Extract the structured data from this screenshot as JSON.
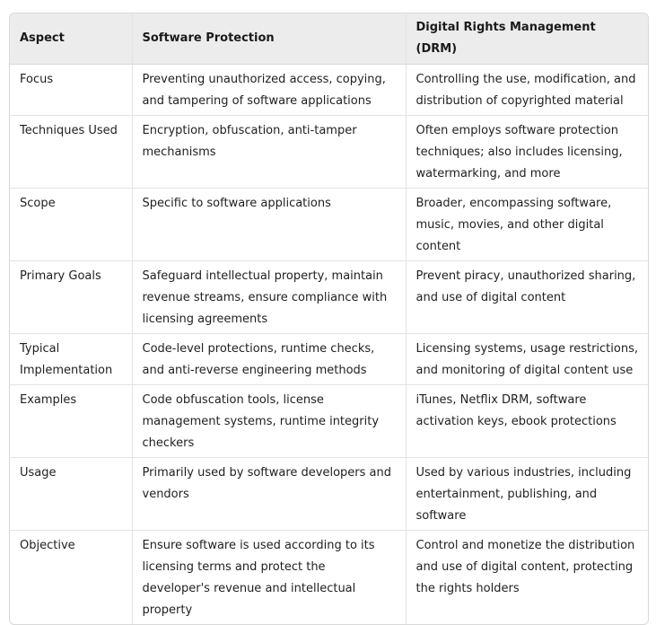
{
  "table": {
    "headers": [
      "Aspect",
      "Software Protection",
      "Digital Rights Management (DRM)"
    ],
    "rows": [
      [
        "Focus",
        "Preventing unauthorized access, copying, and tampering of software applications",
        "Controlling the use, modification, and distribution of copyrighted material"
      ],
      [
        "Techniques Used",
        "Encryption, obfuscation, anti-tamper mechanisms",
        "Often employs software protection techniques; also includes licensing, watermarking, and more"
      ],
      [
        "Scope",
        "Specific to software applications",
        "Broader, encompassing software, music, movies, and other digital content"
      ],
      [
        "Primary Goals",
        "Safeguard intellectual property, maintain revenue streams, ensure compliance with licensing agreements",
        "Prevent piracy, unauthorized sharing, and use of digital content"
      ],
      [
        "Typical Implementation",
        "Code-level protections, runtime checks, and anti-reverse engineering methods",
        "Licensing systems, usage restrictions, and monitoring of digital content use"
      ],
      [
        "Examples",
        "Code obfuscation tools, license management systems, runtime integrity checkers",
        "iTunes, Netflix DRM, software activation keys, ebook protections"
      ],
      [
        "Usage",
        "Primarily used by software developers and vendors",
        "Used by various industries, including entertainment, publishing, and software"
      ],
      [
        "Objective",
        "Ensure software is used according to its licensing terms and protect the developer's revenue and intellectual property",
        "Control and monetize the distribution and use of digital content, protecting the rights holders"
      ]
    ]
  }
}
